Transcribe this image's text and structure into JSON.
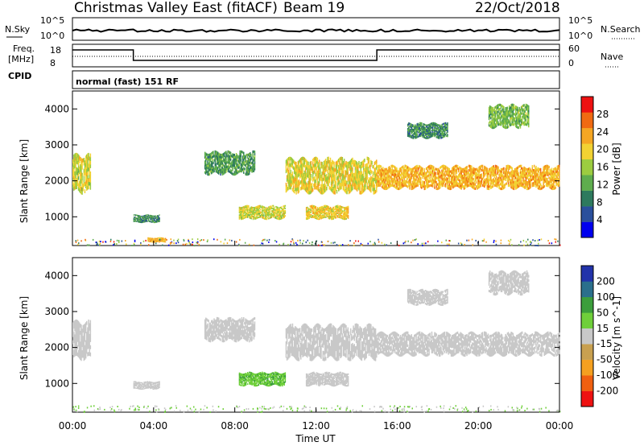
{
  "header": {
    "station": "Christmas Valley East (fitACF)",
    "beam": "Beam 19",
    "date": "22/Oct/2018"
  },
  "status_panels": {
    "nsky_label": "N.Sky",
    "nsearch_label": "N.Search",
    "noise_ticks": [
      "10^5",
      "10^0"
    ],
    "freq_label_1": "Freq.",
    "freq_label_2": "[MHz]",
    "freq_ticks": [
      "18",
      "8"
    ],
    "nave_ticks": [
      "60",
      "0"
    ],
    "nave_label": "Nave",
    "cpid_label": "CPID",
    "cpid_value": "normal (fast) 151 RF"
  },
  "colors": {
    "power_scale": [
      "#0000ee",
      "#2a4f9c",
      "#2e7a5e",
      "#5fad4e",
      "#9ccc40",
      "#f2d233",
      "#f5a623",
      "#f06a12",
      "#ee1111"
    ],
    "velocity_scale": [
      "#2233aa",
      "#2b6f8c",
      "#3c9e3c",
      "#6fcf3a",
      "#c8c8c8",
      "#c8a050",
      "#f5a020",
      "#f06010",
      "#ee1111"
    ]
  },
  "chart_data": [
    {
      "type": "heatmap",
      "name": "power",
      "ylabel": "Slant Range [km]",
      "ylim": [
        200,
        4500
      ],
      "yticks": [
        "1000",
        "2000",
        "3000",
        "4000"
      ],
      "colorbar_label": "Power [dB]",
      "colorbar_ticks": [
        "4",
        "8",
        "12",
        "16",
        "20",
        "24",
        "28"
      ],
      "colorbar_range": [
        0,
        32
      ],
      "bands": [
        {
          "t0": 0.0,
          "t1": 0.9,
          "r_lo": 1700,
          "r_hi": 2700,
          "value": 18
        },
        {
          "t0": 3.0,
          "t1": 4.3,
          "r_lo": 850,
          "r_hi": 1050,
          "value": 10
        },
        {
          "t0": 3.7,
          "t1": 4.6,
          "r_lo": 300,
          "r_hi": 420,
          "value": 22
        },
        {
          "t0": 6.5,
          "t1": 9.0,
          "r_lo": 2200,
          "r_hi": 2800,
          "value": 11
        },
        {
          "t0": 8.2,
          "t1": 10.5,
          "r_lo": 950,
          "r_hi": 1300,
          "value": 18
        },
        {
          "t0": 11.5,
          "t1": 13.6,
          "r_lo": 950,
          "r_hi": 1300,
          "value": 20
        },
        {
          "t0": 10.5,
          "t1": 15.0,
          "r_lo": 1700,
          "r_hi": 2600,
          "value": 19
        },
        {
          "t0": 15.0,
          "t1": 24.0,
          "r_lo": 1800,
          "r_hi": 2400,
          "value": 22
        },
        {
          "t0": 16.5,
          "t1": 18.5,
          "r_lo": 3200,
          "r_hi": 3600,
          "value": 10
        },
        {
          "t0": 20.5,
          "t1": 22.5,
          "r_lo": 3500,
          "r_hi": 4100,
          "value": 14
        }
      ]
    },
    {
      "type": "heatmap",
      "name": "velocity",
      "ylabel": "Slant Range [km]",
      "xlabel": "Time UT",
      "ylim": [
        200,
        4500
      ],
      "yticks": [
        "1000",
        "2000",
        "3000",
        "4000"
      ],
      "xticks": [
        "00:00",
        "04:00",
        "08:00",
        "12:00",
        "16:00",
        "20:00",
        "00:00"
      ],
      "xlim": [
        0,
        24
      ],
      "colorbar_label": "Velocity [m s^-1]",
      "colorbar_ticks": [
        "200",
        "100",
        "50",
        "15",
        "-15",
        "-50",
        "-100",
        "-200"
      ],
      "bands": [
        {
          "t0": 0.0,
          "t1": 0.9,
          "r_lo": 1700,
          "r_hi": 2700,
          "value": 0
        },
        {
          "t0": 3.0,
          "t1": 4.3,
          "r_lo": 850,
          "r_hi": 1050,
          "value": 0
        },
        {
          "t0": 6.5,
          "t1": 9.0,
          "r_lo": 2200,
          "r_hi": 2800,
          "value": 0
        },
        {
          "t0": 8.2,
          "t1": 10.5,
          "r_lo": 950,
          "r_hi": 1300,
          "value": 30
        },
        {
          "t0": 11.5,
          "t1": 13.6,
          "r_lo": 950,
          "r_hi": 1300,
          "value": 0
        },
        {
          "t0": 10.5,
          "t1": 15.0,
          "r_lo": 1700,
          "r_hi": 2600,
          "value": 0
        },
        {
          "t0": 15.0,
          "t1": 24.0,
          "r_lo": 1800,
          "r_hi": 2400,
          "value": 0
        },
        {
          "t0": 16.5,
          "t1": 18.5,
          "r_lo": 3200,
          "r_hi": 3600,
          "value": 0
        },
        {
          "t0": 20.5,
          "t1": 22.5,
          "r_lo": 3500,
          "r_hi": 4100,
          "value": 0
        }
      ]
    }
  ]
}
